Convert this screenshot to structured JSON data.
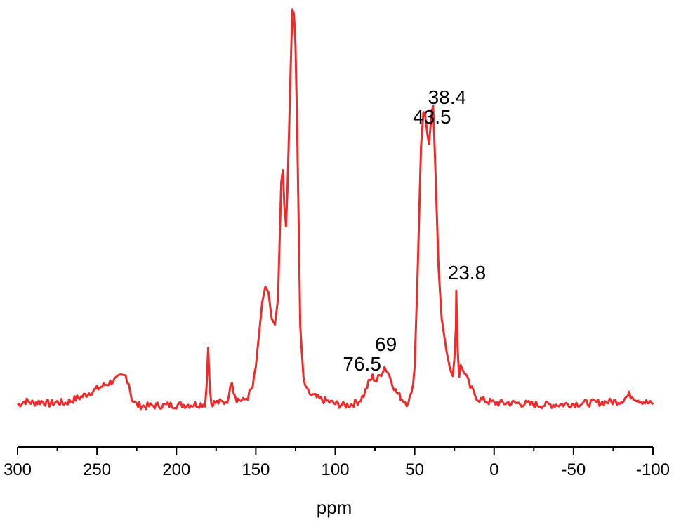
{
  "chart_data": {
    "type": "line",
    "title": "",
    "xlabel": "ppm",
    "ylabel": "",
    "xlim": [
      300,
      -100
    ],
    "ylim": [
      0,
      1
    ],
    "x_reversed": true,
    "grid": false,
    "y_axis_shown": false,
    "line_color": "#ee2a2a",
    "axis_color": "#000000",
    "xticks": [
      300,
      250,
      200,
      150,
      100,
      50,
      0,
      -50,
      -100
    ],
    "xtick_labels": [
      "300",
      "250",
      "200",
      "150",
      "100",
      "50",
      "0",
      "-50",
      "-100"
    ],
    "annotations": [
      {
        "text": "38.4",
        "ppm": 38.4
      },
      {
        "text": "43.5",
        "ppm": 43.5
      },
      {
        "text": "23.8",
        "ppm": 23.8
      },
      {
        "text": "69",
        "ppm": 69
      },
      {
        "text": "76.5",
        "ppm": 76.5
      }
    ],
    "series": [
      {
        "values": [
          [
            300,
            0.005
          ],
          [
            295,
            0.015
          ],
          [
            290,
            0.01
          ],
          [
            285,
            0.014
          ],
          [
            280,
            0.008
          ],
          [
            275,
            0.012
          ],
          [
            270,
            0.01
          ],
          [
            265,
            0.018
          ],
          [
            260,
            0.025
          ],
          [
            255,
            0.035
          ],
          [
            250,
            0.045
          ],
          [
            245,
            0.055
          ],
          [
            240,
            0.065
          ],
          [
            237,
            0.07
          ],
          [
            235,
            0.075
          ],
          [
            232,
            0.078
          ],
          [
            230,
            0.06
          ],
          [
            228,
            0.02
          ],
          [
            225,
            0.005
          ],
          [
            220,
            0.002
          ],
          [
            210,
            0.004
          ],
          [
            200,
            0.005
          ],
          [
            190,
            0.006
          ],
          [
            182,
            0.008
          ],
          [
            181,
            0.05
          ],
          [
            180,
            0.147
          ],
          [
            179,
            0.05
          ],
          [
            178,
            0.01
          ],
          [
            170,
            0.012
          ],
          [
            167,
            0.02
          ],
          [
            166,
            0.06
          ],
          [
            165,
            0.068
          ],
          [
            164,
            0.04
          ],
          [
            162,
            0.02
          ],
          [
            158,
            0.015
          ],
          [
            155,
            0.025
          ],
          [
            152,
            0.05
          ],
          [
            150,
            0.1
          ],
          [
            148,
            0.18
          ],
          [
            146,
            0.26
          ],
          [
            144,
            0.3
          ],
          [
            142,
            0.285
          ],
          [
            140,
            0.22
          ],
          [
            138,
            0.205
          ],
          [
            136,
            0.27
          ],
          [
            134,
            0.56
          ],
          [
            133,
            0.59
          ],
          [
            132,
            0.5
          ],
          [
            131,
            0.45
          ],
          [
            130,
            0.55
          ],
          [
            128,
            0.85
          ],
          [
            127,
            0.99
          ],
          [
            126,
            0.98
          ],
          [
            125,
            0.9
          ],
          [
            124,
            0.7
          ],
          [
            123,
            0.45
          ],
          [
            122,
            0.2
          ],
          [
            120,
            0.07
          ],
          [
            118,
            0.04
          ],
          [
            115,
            0.03
          ],
          [
            110,
            0.02
          ],
          [
            100,
            0.008
          ],
          [
            95,
            0.004
          ],
          [
            90,
            0.006
          ],
          [
            85,
            0.015
          ],
          [
            82,
            0.03
          ],
          [
            79,
            0.06
          ],
          [
            76.5,
            0.075
          ],
          [
            74,
            0.065
          ],
          [
            71,
            0.085
          ],
          [
            69,
            0.1
          ],
          [
            67,
            0.088
          ],
          [
            65,
            0.07
          ],
          [
            62,
            0.04
          ],
          [
            58,
            0.02
          ],
          [
            55,
            0.01
          ],
          [
            52,
            0.03
          ],
          [
            50,
            0.1
          ],
          [
            48,
            0.35
          ],
          [
            46,
            0.65
          ],
          [
            44.5,
            0.735
          ],
          [
            43.5,
            0.73
          ],
          [
            42,
            0.68
          ],
          [
            41,
            0.655
          ],
          [
            40,
            0.7
          ],
          [
            39,
            0.74
          ],
          [
            38.4,
            0.75
          ],
          [
            37,
            0.6
          ],
          [
            35,
            0.35
          ],
          [
            33,
            0.22
          ],
          [
            30,
            0.14
          ],
          [
            28,
            0.1
          ],
          [
            26,
            0.08
          ],
          [
            25,
            0.12
          ],
          [
            24,
            0.2
          ],
          [
            23.8,
            0.29
          ],
          [
            23,
            0.15
          ],
          [
            22,
            0.08
          ],
          [
            21,
            0.1
          ],
          [
            19,
            0.09
          ],
          [
            17,
            0.07
          ],
          [
            15,
            0.05
          ],
          [
            12,
            0.03
          ],
          [
            10,
            0.02
          ],
          [
            5,
            0.015
          ],
          [
            0,
            0.01
          ],
          [
            -10,
            0.01
          ],
          [
            -20,
            0.008
          ],
          [
            -30,
            0.005
          ],
          [
            -40,
            0.006
          ],
          [
            -50,
            0.008
          ],
          [
            -60,
            0.01
          ],
          [
            -70,
            0.012
          ],
          [
            -80,
            0.015
          ],
          [
            -85,
            0.03
          ],
          [
            -88,
            0.025
          ],
          [
            -90,
            0.02
          ],
          [
            -95,
            0.012
          ],
          [
            -100,
            0.006
          ]
        ]
      }
    ]
  }
}
